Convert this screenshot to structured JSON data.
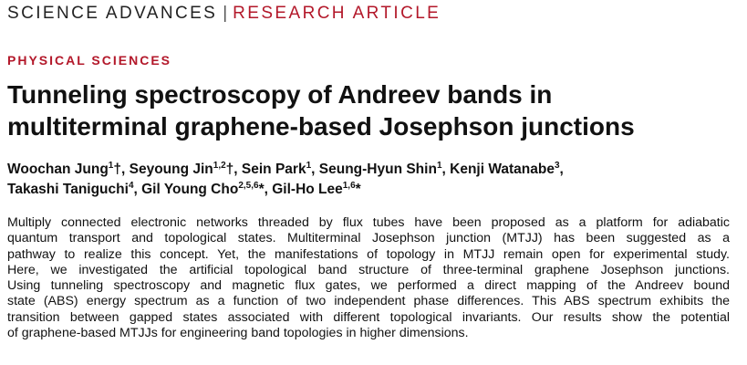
{
  "header": {
    "journal": "SCIENCE ADVANCES",
    "separator": "|",
    "article_type": "RESEARCH ARTICLE"
  },
  "section": "PHYSICAL SCIENCES",
  "title": {
    "lines": [
      "Tunneling spectroscopy of Andreev bands in",
      "multiterminal graphene-based Josephson junctions"
    ]
  },
  "authors": {
    "lines": [
      [
        {
          "name": "Woochan Jung",
          "affiliations": "1",
          "suffix": "†,"
        },
        {
          "name": "Seyoung Jin",
          "affiliations": "1,2",
          "suffix": "†,"
        },
        {
          "name": "Sein Park",
          "affiliations": "1",
          "suffix": ","
        },
        {
          "name": "Seung-Hyun Shin",
          "affiliations": "1",
          "suffix": ","
        },
        {
          "name": "Kenji Watanabe",
          "affiliations": "3",
          "suffix": ","
        }
      ],
      [
        {
          "name": "Takashi Taniguchi",
          "affiliations": "4",
          "suffix": ","
        },
        {
          "name": "Gil Young Cho",
          "affiliations": "2,5,6",
          "suffix": "*,"
        },
        {
          "name": "Gil-Ho Lee",
          "affiliations": "1,6",
          "suffix": "*"
        }
      ]
    ]
  },
  "abstract": {
    "lines": [
      "Multiply connected electronic networks threaded by flux tubes have been proposed as a platform for adiabatic",
      "quantum transport and topological states. Multiterminal Josephson junction (MTJJ) has been suggested as a",
      "pathway to realize this concept. Yet, the manifestations of topology in MTJJ remain open for experimental study.",
      "Here, we investigated the artificial topological band structure of three-terminal graphene Josephson junctions.",
      "Using tunneling spectroscopy and magnetic flux gates, we performed a direct mapping of the Andreev bound",
      "state (ABS) energy spectrum as a function of two independent phase differences. This ABS spectrum exhibits the",
      "transition between gapped states associated with different topological invariants. Our results show the potential",
      "of graphene-based MTJJs for engineering band topologies in higher dimensions."
    ]
  }
}
